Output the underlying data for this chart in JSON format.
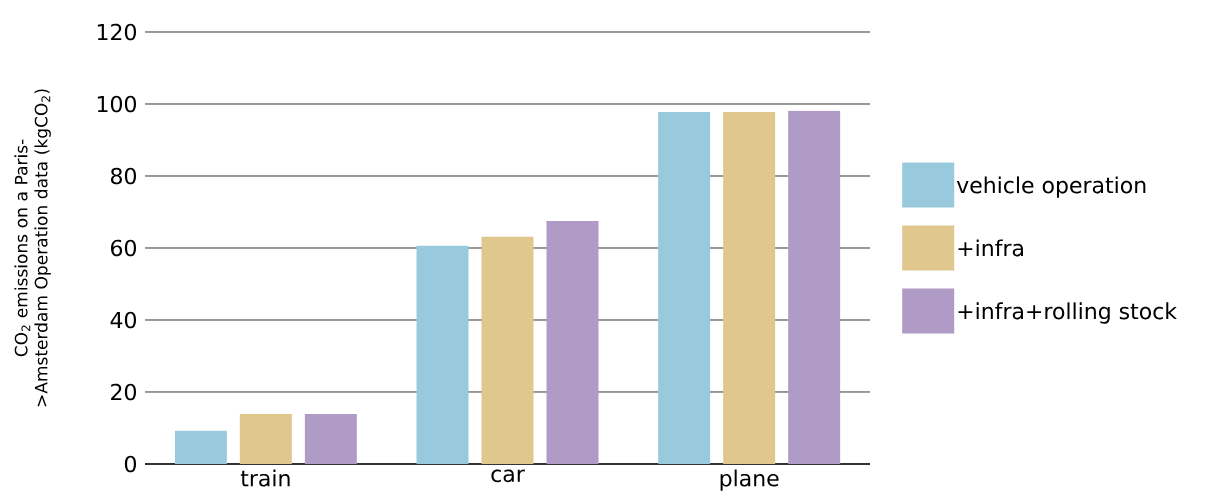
{
  "chart_data": {
    "type": "bar",
    "ylabel": "CO$_{2}$ emissions on a Paris->Amsterdam Operation data (kgCO$_{2}$)",
    "categories": [
      "train",
      "car",
      "plane"
    ],
    "series": [
      {
        "name": "vehicle operation",
        "color": "#99c9dc",
        "values": [
          9.2,
          60.6,
          97.8
        ]
      },
      {
        "name": "+infra",
        "color": "#dfc78e",
        "values": [
          13.9,
          63.1,
          97.8
        ]
      },
      {
        "name": "+infra+rolling stock",
        "color": "#b09bc6",
        "values": [
          13.9,
          67.5,
          98.1
        ]
      }
    ],
    "ylim": [
      0,
      120
    ],
    "yticks": [
      0,
      20,
      40,
      60,
      80,
      100,
      120
    ],
    "grid": "y",
    "legend": "right"
  }
}
